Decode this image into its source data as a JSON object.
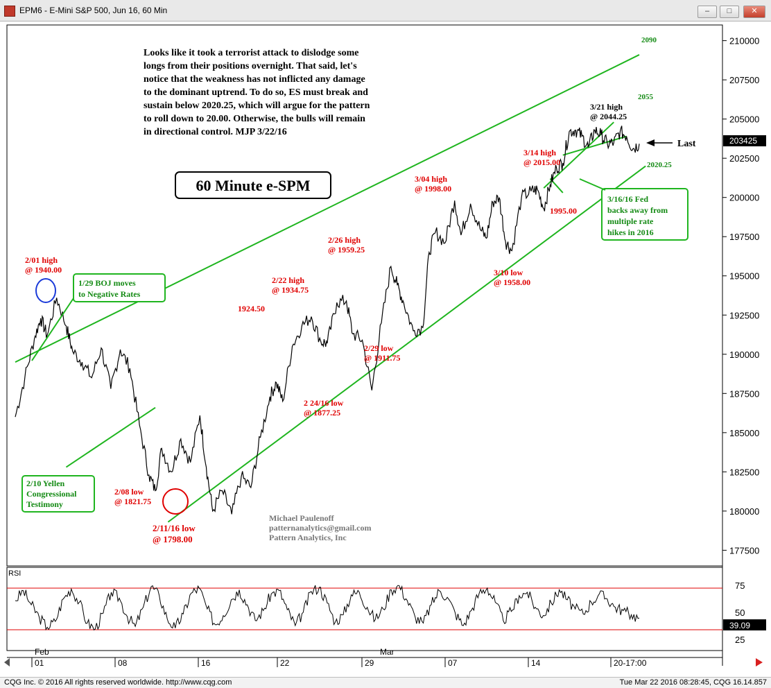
{
  "window": {
    "title": "EPM6 - E-Mini S&P 500, Jun 16, 60 Min",
    "buttons": [
      "minimize",
      "maximize",
      "close"
    ]
  },
  "footer": {
    "left": "CQG Inc. © 2016 All rights reserved worldwide. http://www.cqg.com",
    "right": "Tue Mar 22 2016 08:28:45, CQG 16.14.857"
  },
  "colors": {
    "price": "#000000",
    "channel": "#1fb51f",
    "red_label": "#e00000",
    "green_label": "#138a13",
    "circle_blue": "#1b3bd9",
    "circle_red": "#e00000",
    "rsi_levels": "#e00000"
  },
  "commentary": [
    "Looks like it took a terrorist attack to dislodge some",
    "longs from their positions overnight. That said, let's",
    "notice that the weakness has not inflicted any damage",
    "to the dominant uptrend. To do so, ES must break and",
    "sustain below 2020.25, which will argue for the pattern",
    "to roll down to 20.00. Otherwise, the bulls will remain",
    "in directional control.  MJP 3/22/16"
  ],
  "chart_title": "60 Minute e-SPM",
  "attribution": [
    "Michael Paulenoff",
    "patternanalytics@gmail.com",
    "Pattern Analytics, Inc"
  ],
  "price_labels": {
    "last_value": "203425",
    "last_text": "Last",
    "channel_top": "2090",
    "inner_top": "2055",
    "support": "2020.25"
  },
  "annotations": {
    "red": [
      {
        "id": "feb01",
        "lines": [
          "2/01 high",
          "@ 1940.00"
        ]
      },
      {
        "id": "feb08",
        "lines": [
          "2/08 low",
          "@ 1821.75"
        ]
      },
      {
        "id": "feb11",
        "lines": [
          "2/11/16 low",
          "@ 1798.00"
        ]
      },
      {
        "id": "p1924",
        "lines": [
          "1924.50"
        ]
      },
      {
        "id": "feb22",
        "lines": [
          "2/22 high",
          "@ 1934.75"
        ]
      },
      {
        "id": "feb24",
        "lines": [
          "2 24/16 low",
          "@ 1877.25"
        ]
      },
      {
        "id": "feb26",
        "lines": [
          "2/26 high",
          "@ 1959.25"
        ]
      },
      {
        "id": "feb29",
        "lines": [
          "2/29 low",
          "@ 1911.75"
        ]
      },
      {
        "id": "mar04",
        "lines": [
          "3/04 high",
          "@ 1998.00"
        ]
      },
      {
        "id": "mar10",
        "lines": [
          "3/10 low",
          "@ 1958.00"
        ]
      },
      {
        "id": "mar14",
        "lines": [
          "3/14 high",
          "@ 2015.00"
        ]
      },
      {
        "id": "p1995",
        "lines": [
          "1995.00"
        ]
      }
    ],
    "black": [
      {
        "id": "mar21",
        "lines": [
          "3/21 high",
          "@ 2044.25"
        ]
      }
    ],
    "boxes": [
      {
        "id": "boj",
        "lines": [
          "1/29 BOJ moves",
          "to Negative Rates"
        ]
      },
      {
        "id": "yellen",
        "lines": [
          "2/10 Yellen",
          "Congressional",
          "Testimony"
        ]
      },
      {
        "id": "fed",
        "lines": [
          "3/16/16 Fed",
          "backs away from",
          "multiple rate",
          "hikes in 2016"
        ]
      }
    ]
  },
  "rsi": {
    "label": "RSI",
    "value_label": "39.09",
    "value": 39.09,
    "levels": [
      25,
      75
    ],
    "ticks": [
      "75",
      "50",
      "25"
    ]
  },
  "chart_data": {
    "type": "line",
    "title": "60 Minute e-SPM",
    "ylim": [
      176500,
      211000
    ],
    "y_ticks": [
      "210000",
      "207500",
      "205000",
      "202500",
      "200000",
      "197500",
      "195000",
      "192500",
      "190000",
      "187500",
      "185000",
      "182500",
      "180000",
      "177500"
    ],
    "x_ticks": [
      "01",
      "08",
      "16",
      "22",
      "29",
      "07",
      "14",
      "20-17:00"
    ],
    "month_labels": [
      "Feb",
      "Mar"
    ],
    "series": [
      {
        "x": [
          0,
          1.5,
          3,
          4,
          5,
          6.5,
          8,
          9,
          10.5,
          12,
          13.5,
          15,
          16.5,
          18,
          19.5,
          21,
          22,
          23,
          24.5,
          26,
          27.5,
          29,
          30,
          31,
          32.5,
          34,
          35.5,
          37,
          38.5,
          40,
          41,
          42,
          43.5,
          45,
          46.5,
          48,
          49,
          50.5,
          52,
          53,
          54.5,
          56,
          57.5,
          59,
          60,
          61,
          62.5,
          64,
          65,
          66,
          67.5,
          69,
          70,
          71.5,
          73,
          74,
          75,
          76,
          77,
          78,
          79.5,
          81,
          82,
          83,
          84,
          85,
          86,
          87,
          88,
          89,
          90,
          91,
          92,
          93,
          94,
          95,
          96,
          97,
          98
        ],
        "values": [
          186000,
          188500,
          191000,
          192300,
          191200,
          193600,
          191800,
          190200,
          189500,
          188500,
          190400,
          187800,
          190300,
          189100,
          185500,
          182300,
          181300,
          184000,
          182500,
          184600,
          183100,
          186100,
          182800,
          180000,
          181300,
          179800,
          182200,
          181500,
          184700,
          187300,
          188200,
          187000,
          190500,
          191800,
          192400,
          190800,
          190700,
          193300,
          193400,
          191300,
          190900,
          187700,
          192000,
          195600,
          194400,
          193300,
          191500,
          191700,
          196500,
          197800,
          197100,
          199800,
          197600,
          199600,
          198000,
          197400,
          199700,
          200000,
          197200,
          196600,
          200000,
          200400,
          200500,
          199300,
          200800,
          201900,
          202200,
          204200,
          204300,
          203900,
          203200,
          204300,
          204000,
          203400,
          203500,
          204200,
          203900,
          203100,
          203425
        ]
      }
    ],
    "rsi_series": [
      60,
      72,
      55,
      40,
      28,
      35,
      62,
      74,
      58,
      33,
      26,
      45,
      70,
      63,
      41,
      29,
      52,
      77,
      66,
      38,
      27,
      44,
      69,
      75,
      50,
      31,
      42,
      61,
      73,
      55,
      36,
      48,
      68,
      72,
      49,
      30,
      46,
      71,
      76,
      57,
      34,
      43,
      67,
      70,
      52,
      37,
      50,
      73,
      78,
      60,
      40,
      33,
      55,
      72,
      64,
      45,
      30,
      48,
      69,
      75,
      58,
      36,
      47,
      66,
      70,
      52,
      42,
      57,
      73,
      61,
      50,
      44,
      58,
      68,
      62,
      52,
      48,
      43,
      39.09
    ],
    "channels": [
      {
        "name": "2090",
        "points": [
          [
            0,
            189500
          ],
          [
            98,
            209100
          ]
        ]
      },
      {
        "name": "lower",
        "points": [
          [
            24,
            179300
          ],
          [
            99,
            202000
          ]
        ]
      },
      {
        "name": "upper-early",
        "points": [
          [
            8,
            182800
          ],
          [
            22,
            186600
          ]
        ]
      }
    ]
  }
}
